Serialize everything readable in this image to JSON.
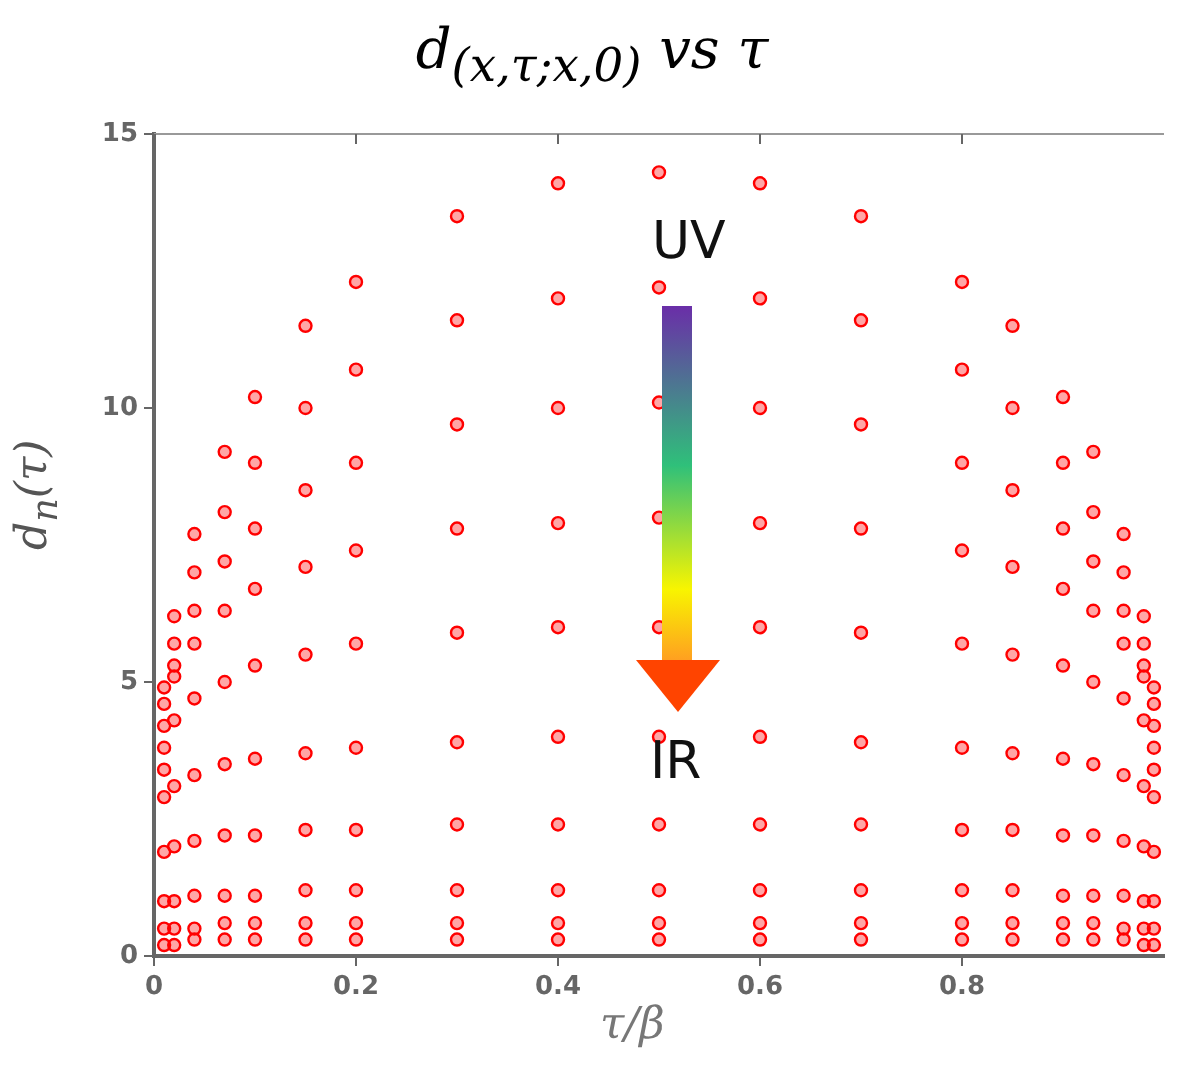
{
  "chart_data": {
    "type": "scatter",
    "title": "d$_{(x,τ;x,0)}$ vs τ",
    "xlabel": "τ/β",
    "ylabel": "d$_{n}$(τ)",
    "annotations": [
      "UV",
      "IR"
    ],
    "x": [
      0.01,
      0.02,
      0.04,
      0.07,
      0.1,
      0.15,
      0.2,
      0.3,
      0.4,
      0.5,
      0.6,
      0.7,
      0.8,
      0.85,
      0.9,
      0.93,
      0.96,
      0.98,
      0.99
    ],
    "xlim": [
      0,
      1
    ],
    "xticks": [
      0,
      0.2,
      0.4,
      0.6,
      0.8
    ],
    "ylim": [
      0,
      15
    ],
    "yticks": [
      0,
      5,
      10,
      15
    ],
    "grid": false,
    "legend": false,
    "marker": "circle",
    "series": [
      {
        "color": "#ff0000",
        "values": [
          4.9,
          6.2,
          7.7,
          9.2,
          10.2,
          11.5,
          12.3,
          13.5,
          14.1,
          14.3,
          14.1,
          13.5,
          12.3,
          11.5,
          10.2,
          9.2,
          7.7,
          6.2,
          4.9
        ]
      },
      {
        "color": "#ff0000",
        "values": [
          4.6,
          5.7,
          7.0,
          8.1,
          9.0,
          10.0,
          10.7,
          11.6,
          12.0,
          12.2,
          12.0,
          11.6,
          10.7,
          10.0,
          9.0,
          8.1,
          7.0,
          5.7,
          4.6
        ]
      },
      {
        "color": "#ff0000",
        "values": [
          4.2,
          5.3,
          6.3,
          7.2,
          7.8,
          8.5,
          9.0,
          9.7,
          10.0,
          10.1,
          10.0,
          9.7,
          9.0,
          8.5,
          7.8,
          7.2,
          6.3,
          5.3,
          4.2
        ]
      },
      {
        "color": "#ff0000",
        "values": [
          3.8,
          5.1,
          5.7,
          6.3,
          6.7,
          7.1,
          7.4,
          7.8,
          7.9,
          8.0,
          7.9,
          7.8,
          7.4,
          7.1,
          6.7,
          6.3,
          5.7,
          5.1,
          3.8
        ]
      },
      {
        "color": "#ff0000",
        "values": [
          3.4,
          4.3,
          4.7,
          5.0,
          5.3,
          5.5,
          5.7,
          5.9,
          6.0,
          6.0,
          6.0,
          5.9,
          5.7,
          5.5,
          5.3,
          5.0,
          4.7,
          4.3,
          3.4
        ]
      },
      {
        "color": "#ff0000",
        "values": [
          2.9,
          3.1,
          3.3,
          3.5,
          3.6,
          3.7,
          3.8,
          3.9,
          4.0,
          4.0,
          4.0,
          3.9,
          3.8,
          3.7,
          3.6,
          3.5,
          3.3,
          3.1,
          2.9
        ]
      },
      {
        "color": "#ff0000",
        "values": [
          1.9,
          2.0,
          2.1,
          2.2,
          2.2,
          2.3,
          2.3,
          2.4,
          2.4,
          2.4,
          2.4,
          2.4,
          2.3,
          2.3,
          2.2,
          2.2,
          2.1,
          2.0,
          1.9
        ]
      },
      {
        "color": "#ff0000",
        "values": [
          1.0,
          1.0,
          1.1,
          1.1,
          1.1,
          1.2,
          1.2,
          1.2,
          1.2,
          1.2,
          1.2,
          1.2,
          1.2,
          1.2,
          1.1,
          1.1,
          1.1,
          1.0,
          1.0
        ]
      },
      {
        "color": "#ff0000",
        "values": [
          0.5,
          0.5,
          0.5,
          0.6,
          0.6,
          0.6,
          0.6,
          0.6,
          0.6,
          0.6,
          0.6,
          0.6,
          0.6,
          0.6,
          0.6,
          0.6,
          0.5,
          0.5,
          0.5
        ]
      },
      {
        "color": "#ff0000",
        "values": [
          0.2,
          0.2,
          0.3,
          0.3,
          0.3,
          0.3,
          0.3,
          0.3,
          0.3,
          0.3,
          0.3,
          0.3,
          0.3,
          0.3,
          0.3,
          0.3,
          0.3,
          0.2,
          0.2
        ]
      }
    ]
  }
}
